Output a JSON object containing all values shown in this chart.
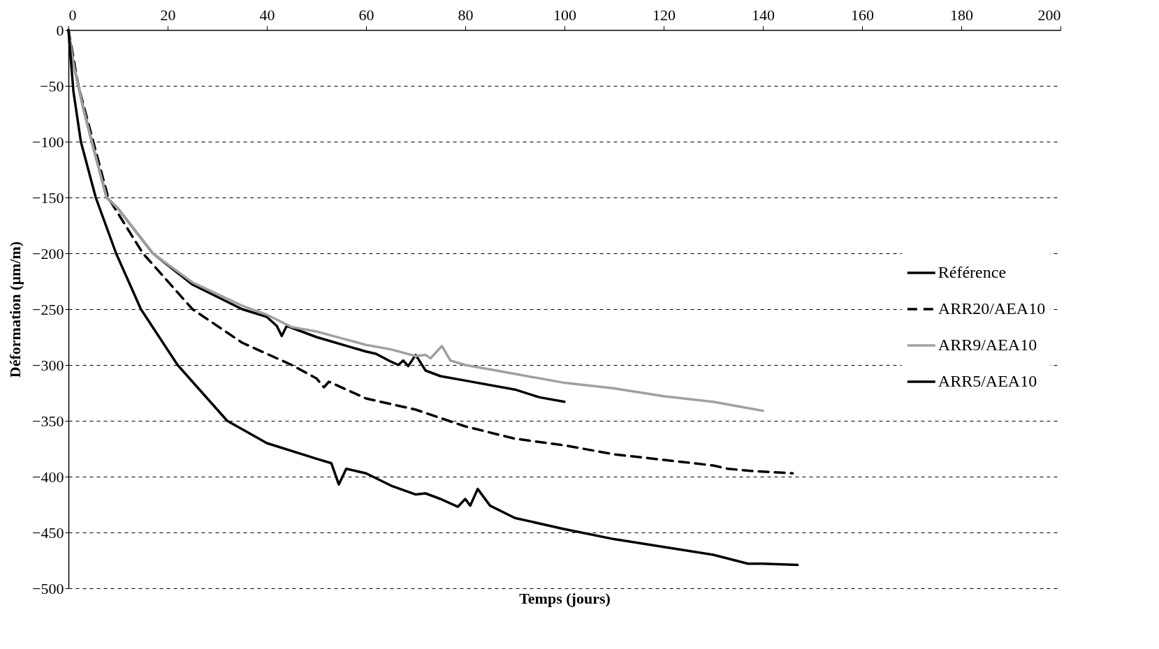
{
  "chart_data": {
    "type": "line",
    "xlabel": "Temps (jours)",
    "ylabel": "Déformation (µm/m)",
    "xlim": [
      0,
      200
    ],
    "xticks": [
      0,
      20,
      40,
      60,
      80,
      100,
      120,
      140,
      160,
      180,
      200
    ],
    "ylim": [
      -500,
      0
    ],
    "yticks": [
      -500,
      -450,
      -400,
      -350,
      -300,
      -250,
      -200,
      -150,
      -100,
      -50,
      0
    ],
    "grid": "y",
    "legend": "right",
    "series": [
      {
        "name": "Référence",
        "color": "#000000",
        "line_style": "solid",
        "x": [
          0,
          1,
          3,
          5,
          7.7,
          10,
          17,
          25,
          35,
          40,
          42,
          43,
          44,
          50,
          60,
          62,
          65,
          66.5,
          67.5,
          68.5,
          70,
          72,
          75,
          80,
          90,
          95,
          100
        ],
        "values": [
          0,
          -30,
          -70,
          -105,
          -150,
          -160,
          -200,
          -228,
          -250,
          -257,
          -265,
          -274,
          -265,
          -275,
          -288,
          -290,
          -297,
          -300,
          -296,
          -301,
          -291,
          -305,
          -310,
          -314,
          -322,
          -329,
          -333
        ]
      },
      {
        "name": "ARR20/AEA10",
        "color": "#000000",
        "line_style": "dashed",
        "x": [
          0,
          2,
          5,
          8,
          15,
          25,
          35,
          45,
          50,
          51.5,
          52.5,
          60,
          67,
          70,
          80,
          90,
          100,
          110,
          120,
          130,
          133,
          138,
          146
        ],
        "values": [
          0,
          -50,
          -100,
          -150,
          -200,
          -250,
          -280,
          -300,
          -312,
          -320,
          -315,
          -330,
          -337,
          -340,
          -355,
          -366,
          -372,
          -380,
          -385,
          -390,
          -393,
          -395,
          -397
        ]
      },
      {
        "name": "ARR9/AEA10",
        "color": "#a0a0a0",
        "line_style": "solid",
        "x": [
          0,
          1,
          3,
          5,
          7.7,
          10,
          17,
          25,
          35,
          40,
          45,
          50,
          55,
          60,
          65,
          70,
          72,
          73,
          75.3,
          77,
          80,
          90,
          100,
          110,
          120,
          130,
          135,
          140
        ],
        "values": [
          0,
          -30,
          -70,
          -105,
          -150,
          -160,
          -200,
          -226,
          -247,
          -255,
          -266,
          -270,
          -276,
          -282,
          -286,
          -292,
          -291,
          -294,
          -283,
          -296,
          -300,
          -308,
          -316,
          -321,
          -328,
          -333,
          -337,
          -341
        ]
      },
      {
        "name": "ARR5/AEA10",
        "color": "#000000",
        "line_style": "solid",
        "x": [
          0,
          1,
          2.5,
          5.5,
          9.6,
          14.6,
          22,
          32,
          40,
          50,
          53,
          54.5,
          56,
          60,
          65,
          70,
          72,
          75,
          77,
          78.5,
          80,
          81,
          82.5,
          85,
          90,
          100,
          110,
          120,
          130,
          137,
          140,
          147
        ],
        "values": [
          0,
          -55,
          -100,
          -150,
          -200,
          -250,
          -300,
          -350,
          -370,
          -384,
          -388,
          -407,
          -393,
          -397,
          -408,
          -416,
          -415,
          -420,
          -424,
          -427,
          -420,
          -426,
          -411,
          -426,
          -437,
          -447,
          -456,
          -463,
          -470,
          -478,
          -478,
          -479
        ]
      }
    ]
  }
}
